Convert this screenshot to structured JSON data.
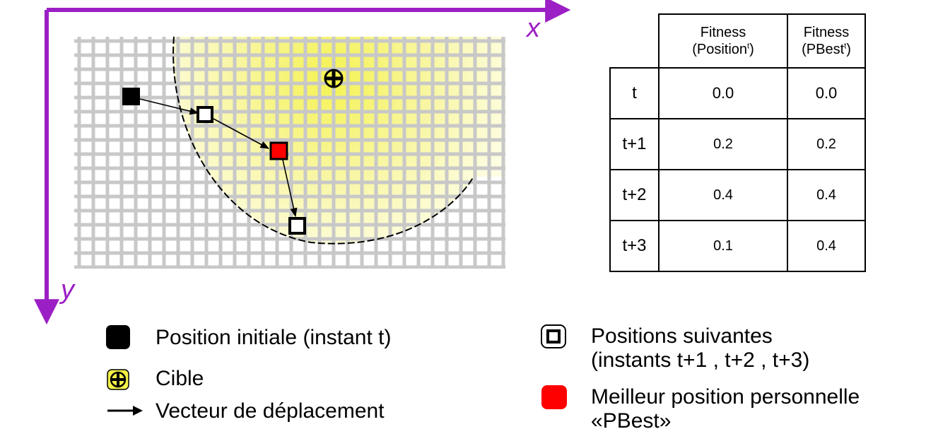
{
  "axes": {
    "x_label": "x",
    "y_label": "y"
  },
  "table": {
    "headers": [
      {
        "line1": "Fitness",
        "line2": "(Position",
        "sup": "t",
        "close": ")"
      },
      {
        "line1": "Fitness",
        "line2": "(PBest",
        "sup": "t",
        "close": ")"
      }
    ],
    "rows": [
      {
        "label": "t",
        "position": "0.0",
        "pbest": "0.0"
      },
      {
        "label": "t+1",
        "position": "0.2",
        "pbest": "0.2"
      },
      {
        "label": "t+2",
        "position": "0.4",
        "pbest": "0.4"
      },
      {
        "label": "t+3",
        "position": "0.1",
        "pbest": "0.4"
      }
    ]
  },
  "legend": {
    "initial_position": "Position initiale (instant t)",
    "target": "Cible",
    "vector": "Vecteur de déplacement",
    "next_positions_line1": "Positions suivantes",
    "next_positions_line2": "(instants t+1 , t+2 , t+3)",
    "pbest_line1": "Meilleur position personnelle",
    "pbest_line2": "«PBest»"
  },
  "colors": {
    "axis": "#9b1fc4",
    "grid": "#c8c8c8",
    "target_zone": "#f7f56a",
    "pbest": "#ff0000",
    "initial": "#000000"
  }
}
